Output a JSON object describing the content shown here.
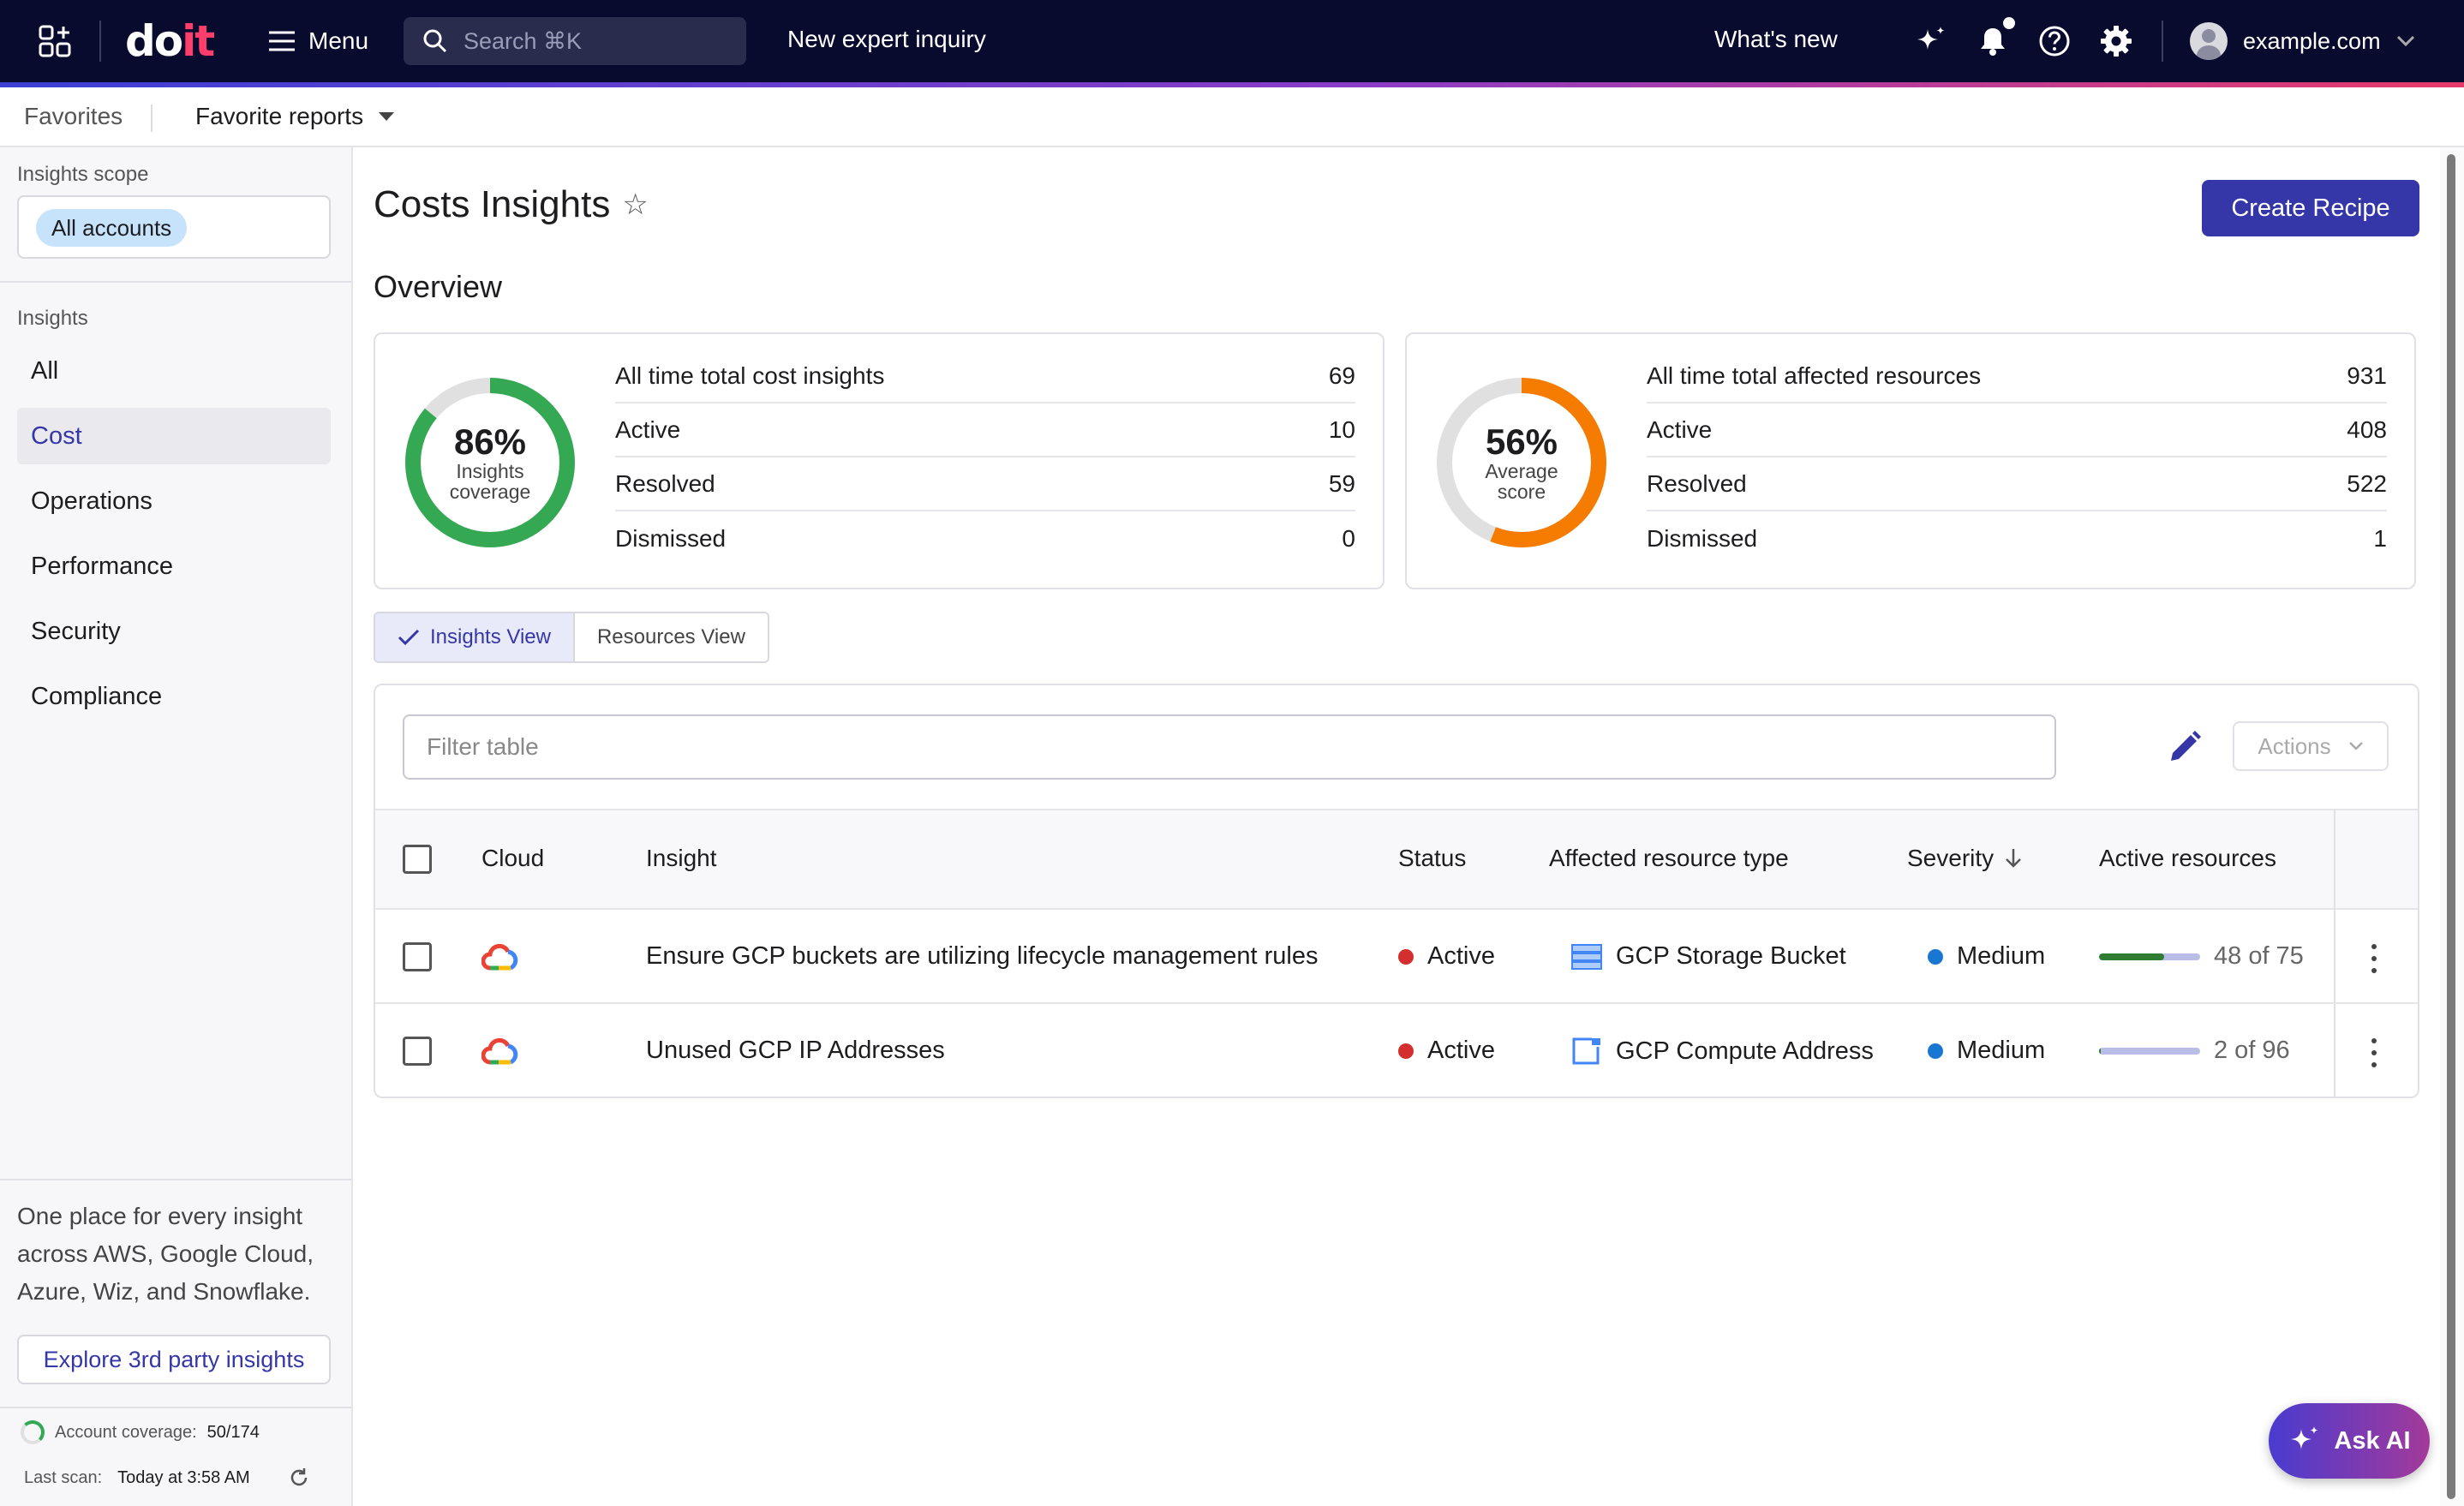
{
  "topbar": {
    "logo_do": "do",
    "logo_it": "it",
    "menu_label": "Menu",
    "search_placeholder": "Search ⌘K",
    "inquiry_label": "New expert inquiry",
    "whatsnew_label": "What's new",
    "account_label": "example.com"
  },
  "favbar": {
    "favorites_label": "Favorites",
    "reports_label": "Favorite reports"
  },
  "sidebar": {
    "scope_label": "Insights scope",
    "scope_chip": "All accounts",
    "insights_label": "Insights",
    "items": [
      {
        "label": "All",
        "active": false
      },
      {
        "label": "Cost",
        "active": true
      },
      {
        "label": "Operations",
        "active": false
      },
      {
        "label": "Performance",
        "active": false
      },
      {
        "label": "Security",
        "active": false
      },
      {
        "label": "Compliance",
        "active": false
      }
    ],
    "promo_text": "One place for every insight across AWS, Google Cloud, Azure, Wiz, and Snowflake.",
    "explore_label": "Explore 3rd party insights",
    "coverage_label": "Account coverage:",
    "coverage_value": "50/174",
    "scan_label": "Last scan:",
    "scan_value": "Today at 3:58 AM"
  },
  "main": {
    "title": "Costs Insights",
    "create_label": "Create Recipe",
    "overview_label": "Overview",
    "card1": {
      "pct": "86%",
      "pct_value": 86,
      "caption": "Insights coverage",
      "color": "#34a853",
      "rows": [
        {
          "label": "All time total cost insights",
          "value": "69"
        },
        {
          "label": "Active",
          "value": "10"
        },
        {
          "label": "Resolved",
          "value": "59"
        },
        {
          "label": "Dismissed",
          "value": "0"
        }
      ]
    },
    "card2": {
      "pct": "56%",
      "pct_value": 56,
      "caption": "Average score",
      "color": "#f57c00",
      "rows": [
        {
          "label": "All time total affected resources",
          "value": "931"
        },
        {
          "label": "Active",
          "value": "408"
        },
        {
          "label": "Resolved",
          "value": "522"
        },
        {
          "label": "Dismissed",
          "value": "1"
        }
      ]
    },
    "view_insights": "Insights View",
    "view_resources": "Resources View",
    "filter_placeholder": "Filter table",
    "actions_label": "Actions",
    "columns": {
      "cloud": "Cloud",
      "insight": "Insight",
      "status": "Status",
      "resource_type": "Affected resource type",
      "severity": "Severity",
      "active_resources": "Active resources"
    },
    "rows": [
      {
        "insight": "Ensure GCP buckets are utilizing lifecycle management rules",
        "status": "Active",
        "resource_type": "GCP Storage Bucket",
        "severity": "Medium",
        "active_resources": "48 of 75",
        "progress": 0.64
      },
      {
        "insight": "Unused GCP IP Addresses",
        "status": "Active",
        "resource_type": "GCP Compute Address",
        "severity": "Medium",
        "active_resources": "2 of 96",
        "progress": 0.02
      }
    ]
  },
  "ask_ai_label": "Ask AI",
  "colors": {
    "accent": "#3537a8",
    "status_active": "#d32f2f",
    "severity_medium": "#1976d2"
  }
}
